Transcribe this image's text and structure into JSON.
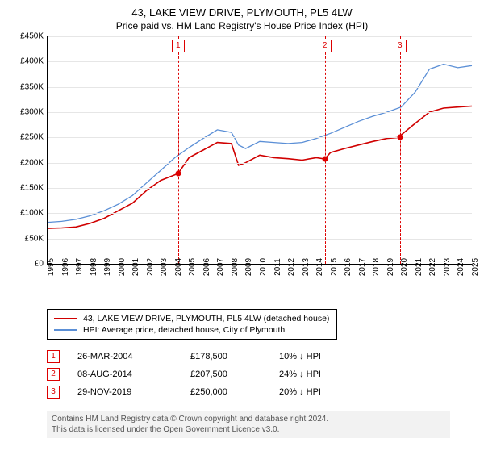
{
  "title": "43, LAKE VIEW DRIVE, PLYMOUTH, PL5 4LW",
  "subtitle": "Price paid vs. HM Land Registry's House Price Index (HPI)",
  "chart": {
    "type": "line",
    "background_color": "#ffffff",
    "grid_color": "#e6e6e6",
    "y_axis": {
      "min": 0,
      "max": 450000,
      "tick_step": 50000,
      "ticks": [
        "£0",
        "£50K",
        "£100K",
        "£150K",
        "£200K",
        "£250K",
        "£300K",
        "£350K",
        "£400K",
        "£450K"
      ]
    },
    "x_axis": {
      "min": 1995,
      "max": 2025,
      "ticks": [
        1995,
        1996,
        1997,
        1998,
        1999,
        2000,
        2001,
        2002,
        2003,
        2004,
        2005,
        2006,
        2007,
        2008,
        2009,
        2010,
        2011,
        2012,
        2013,
        2014,
        2015,
        2016,
        2017,
        2018,
        2019,
        2020,
        2021,
        2022,
        2023,
        2024,
        2025
      ]
    },
    "series": [
      {
        "name": "43, LAKE VIEW DRIVE, PLYMOUTH, PL5 4LW (detached house)",
        "color": "#d00000",
        "width": 1.6,
        "points": [
          [
            1995,
            70000
          ],
          [
            1996,
            71000
          ],
          [
            1997,
            73000
          ],
          [
            1998,
            80000
          ],
          [
            1999,
            90000
          ],
          [
            2000,
            105000
          ],
          [
            2001,
            120000
          ],
          [
            2002,
            145000
          ],
          [
            2003,
            165000
          ],
          [
            2004.23,
            178500
          ],
          [
            2005,
            210000
          ],
          [
            2006,
            225000
          ],
          [
            2007,
            240000
          ],
          [
            2008,
            238000
          ],
          [
            2008.5,
            195000
          ],
          [
            2009,
            200000
          ],
          [
            2010,
            215000
          ],
          [
            2011,
            210000
          ],
          [
            2012,
            208000
          ],
          [
            2013,
            205000
          ],
          [
            2014,
            210000
          ],
          [
            2014.6,
            207500
          ],
          [
            2015,
            220000
          ],
          [
            2016,
            228000
          ],
          [
            2017,
            235000
          ],
          [
            2018,
            242000
          ],
          [
            2019,
            248000
          ],
          [
            2019.91,
            250000
          ],
          [
            2020,
            255000
          ],
          [
            2021,
            278000
          ],
          [
            2022,
            300000
          ],
          [
            2023,
            308000
          ],
          [
            2024,
            310000
          ],
          [
            2025,
            312000
          ]
        ],
        "step_down_at": [
          2004.23,
          2014.6
        ]
      },
      {
        "name": "HPI: Average price, detached house, City of Plymouth",
        "color": "#5b8fd6",
        "width": 1.3,
        "points": [
          [
            1995,
            82000
          ],
          [
            1996,
            84000
          ],
          [
            1997,
            88000
          ],
          [
            1998,
            95000
          ],
          [
            1999,
            105000
          ],
          [
            2000,
            118000
          ],
          [
            2001,
            135000
          ],
          [
            2002,
            160000
          ],
          [
            2003,
            185000
          ],
          [
            2004,
            210000
          ],
          [
            2005,
            230000
          ],
          [
            2006,
            248000
          ],
          [
            2007,
            265000
          ],
          [
            2008,
            260000
          ],
          [
            2008.5,
            235000
          ],
          [
            2009,
            228000
          ],
          [
            2010,
            242000
          ],
          [
            2011,
            240000
          ],
          [
            2012,
            238000
          ],
          [
            2013,
            240000
          ],
          [
            2014,
            248000
          ],
          [
            2015,
            258000
          ],
          [
            2016,
            270000
          ],
          [
            2017,
            282000
          ],
          [
            2018,
            292000
          ],
          [
            2019,
            300000
          ],
          [
            2020,
            310000
          ],
          [
            2021,
            340000
          ],
          [
            2022,
            385000
          ],
          [
            2023,
            395000
          ],
          [
            2024,
            388000
          ],
          [
            2025,
            392000
          ]
        ]
      }
    ],
    "events": [
      {
        "n": "1",
        "year": 2004.23,
        "price": 178500,
        "date_label": "26-MAR-2004",
        "price_label": "£178,500",
        "delta": "10% ↓ HPI"
      },
      {
        "n": "2",
        "year": 2014.6,
        "price": 207500,
        "date_label": "08-AUG-2014",
        "price_label": "£207,500",
        "delta": "24% ↓ HPI"
      },
      {
        "n": "3",
        "year": 2019.91,
        "price": 250000,
        "date_label": "29-NOV-2019",
        "price_label": "£250,000",
        "delta": "20% ↓ HPI"
      }
    ]
  },
  "legend": [
    {
      "label": "43, LAKE VIEW DRIVE, PLYMOUTH, PL5 4LW (detached house)",
      "color": "#d00000"
    },
    {
      "label": "HPI: Average price, detached house, City of Plymouth",
      "color": "#5b8fd6"
    }
  ],
  "footer": {
    "line1": "Contains HM Land Registry data © Crown copyright and database right 2024.",
    "line2": "This data is licensed under the Open Government Licence v3.0."
  }
}
